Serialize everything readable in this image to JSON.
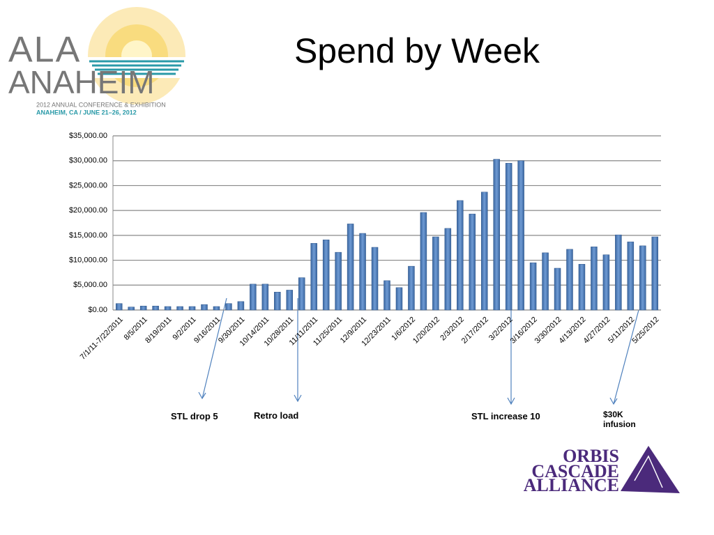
{
  "chart_data": {
    "type": "bar",
    "title": "Spend by Week",
    "categories": [
      "7/1/11-7/22/2011",
      null,
      "8/5/2011",
      null,
      "8/19/2011",
      null,
      "9/2/2011",
      null,
      "9/16/2011",
      null,
      "9/30/2011",
      null,
      "10/14/2011",
      null,
      "10/28/2011",
      null,
      "11/11/2011",
      null,
      "11/25/2011",
      null,
      "12/9/2011",
      null,
      "12/23/2011",
      null,
      "1/6/2012",
      null,
      "1/20/2012",
      null,
      "2/3/2012",
      null,
      "2/17/2012",
      null,
      "3/2/2012",
      null,
      "3/16/2012",
      null,
      "3/30/2012",
      null,
      "4/13/2012",
      null,
      "4/27/2012",
      null,
      "5/11/2012",
      null,
      "5/25/2012"
    ],
    "values": [
      1300,
      600,
      800,
      800,
      700,
      700,
      700,
      1100,
      700,
      1300,
      1700,
      5200,
      5200,
      3600,
      4000,
      6500,
      13400,
      14100,
      11600,
      17300,
      15400,
      12600,
      5900,
      4500,
      8800,
      19600,
      14700,
      16400,
      22000,
      19300,
      23700,
      30300,
      29500,
      30000,
      9500,
      11500,
      8400,
      12200,
      9200,
      12700,
      11100,
      15100,
      13700,
      12900,
      14700
    ],
    "color": "#4f81bd",
    "ylim": [
      0,
      35000
    ],
    "yticks": [
      {
        "value": 0,
        "label": "$0.00"
      },
      {
        "value": 5000,
        "label": "$5,000.00"
      },
      {
        "value": 10000,
        "label": "$10,000.00"
      },
      {
        "value": 15000,
        "label": "$15,000.00"
      },
      {
        "value": 20000,
        "label": "$20,000.00"
      },
      {
        "value": 25000,
        "label": "$25,000.00"
      },
      {
        "value": 30000,
        "label": "$30,000.00"
      },
      {
        "value": 35000,
        "label": "$35,000.00"
      }
    ],
    "grid": true,
    "annotations": [
      "STL drop 5",
      "Retro load",
      "STL increase 10",
      "$30K infusion"
    ]
  },
  "logos": {
    "ala": [
      "ALA",
      "ANAHEIM",
      "2012 ANNUAL CONFERENCE & EXHIBITION",
      "ANAHEIM, CA  /  JUNE 21–26, 2012"
    ],
    "orbis": [
      "ORBIS",
      "CASCADE",
      "ALLIANCE"
    ]
  }
}
